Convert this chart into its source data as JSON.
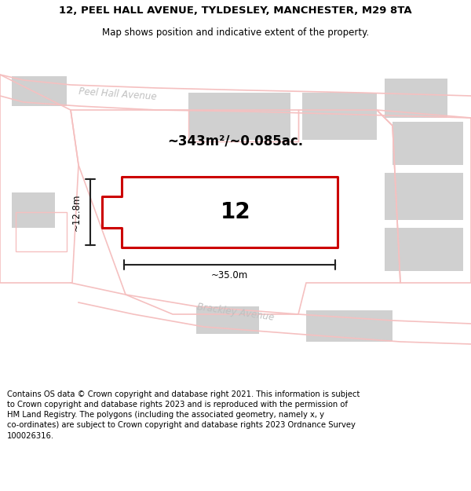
{
  "title_line1": "12, PEEL HALL AVENUE, TYLDESLEY, MANCHESTER, M29 8TA",
  "title_line2": "Map shows position and indicative extent of the property.",
  "footer": "Contains OS data © Crown copyright and database right 2021. This information is subject\nto Crown copyright and database rights 2023 and is reproduced with the permission of\nHM Land Registry. The polygons (including the associated geometry, namely x, y\nco-ordinates) are subject to Crown copyright and database rights 2023 Ordnance Survey\n100026316.",
  "area_label": "~343m²/~0.085ac.",
  "number_label": "12",
  "width_label": "~35.0m",
  "height_label": "~12.8m",
  "map_bg": "#eeecec",
  "road_color_light": "#f5c0c0",
  "road_fill": "#ffffff",
  "building_fill": "#d0d0d0",
  "property_fill": "#ffffff",
  "property_border": "#cc0000",
  "dim_color": "#222222",
  "title_fontsize": 9.5,
  "subtitle_fontsize": 8.5,
  "footer_fontsize": 7.2,
  "area_fontsize": 12,
  "number_fontsize": 20,
  "dim_fontsize": 8.5,
  "road_label_fontsize": 8.5
}
